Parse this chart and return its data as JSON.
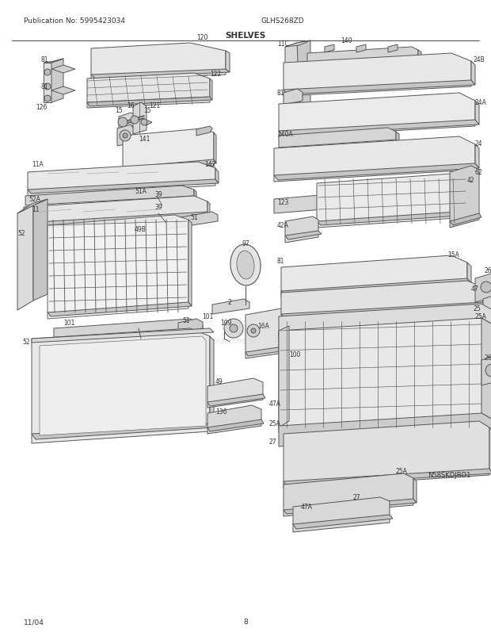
{
  "title": "SHELVES",
  "pub_no": "Publication No: 5995423034",
  "model": "GLHS268ZD",
  "date": "11/04",
  "page": "8",
  "diagram_id": "N58SKDJBD1",
  "bg_color": "#ffffff",
  "line_color": "#555555",
  "text_color": "#333333",
  "watermark": "eReplacementParts.com",
  "fig_width": 6.2,
  "fig_height": 8.03,
  "dpi": 100
}
